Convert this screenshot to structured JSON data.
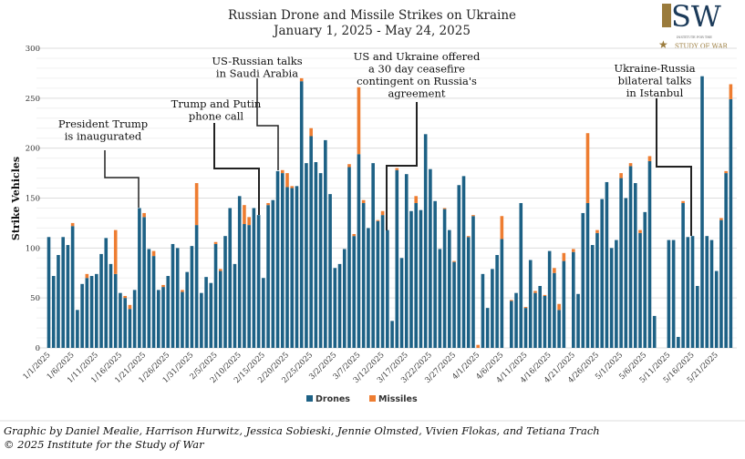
{
  "colors": {
    "drones": "#1d6185",
    "missiles": "#ee7d31",
    "grid": "#e8e8e8",
    "logo_gold": "#9a7b3c",
    "logo_navy": "#1c3b5a"
  },
  "logo": {
    "text": "ISW",
    "subtext_top": "INSTITUTE FOR THE",
    "subtext_bottom": "STUDY OF WAR",
    "icon": "star-icon"
  },
  "footer": {
    "credit": "Graphic by Daniel Mealie, Harrison Hurwitz, Jessica Sobieski, Jennie Olmsted, Vivien Flokas, and Tetiana Trach",
    "copyright": "© 2025 Institute for the Study of War"
  },
  "chart_data": {
    "type": "bar",
    "stacked": true,
    "title": "Russian Drone and Missile Strikes on Ukraine",
    "subtitle": "January 1, 2025 - May 24, 2025",
    "ylabel": "Strike Vehicles",
    "xlabel": "",
    "ylim": [
      0,
      300
    ],
    "yticks": [
      0,
      50,
      100,
      150,
      200,
      250,
      300
    ],
    "grid": true,
    "legend": "bottom",
    "xtick_labels": [
      "1/1/2025",
      "1/6/2025",
      "1/11/2025",
      "1/16/2025",
      "1/21/2025",
      "1/26/2025",
      "1/31/2025",
      "2/5/2025",
      "2/10/2025",
      "2/15/2025",
      "2/20/2025",
      "2/25/2025",
      "3/2/2025",
      "3/7/2025",
      "3/12/2025",
      "3/17/2025",
      "3/22/2025",
      "3/27/2025",
      "4/1/2025",
      "4/6/2025",
      "4/11/2025",
      "4/16/2025",
      "4/21/2025",
      "4/26/2025",
      "5/1/2025",
      "5/6/2025",
      "5/11/2025",
      "5/16/2025",
      "5/21/2025"
    ],
    "start_date": "1/1/2025",
    "end_date": "5/24/2025",
    "series": [
      {
        "name": "Drones",
        "values": [
          111,
          72,
          93,
          111,
          103,
          122,
          38,
          64,
          70,
          72,
          74,
          94,
          110,
          84,
          74,
          55,
          50,
          39,
          58,
          140,
          131,
          99,
          92,
          58,
          61,
          72,
          104,
          100,
          56,
          76,
          102,
          123,
          55,
          71,
          65,
          104,
          77,
          112,
          140,
          84,
          152,
          124,
          123,
          140,
          133,
          70,
          143,
          148,
          177,
          175,
          161,
          160,
          162,
          267,
          185,
          212,
          186,
          175,
          208,
          154,
          80,
          84,
          99,
          181,
          112,
          194,
          145,
          120,
          185,
          127,
          133,
          118,
          27,
          178,
          90,
          174,
          137,
          145,
          138,
          214,
          179,
          147,
          99,
          139,
          118,
          86,
          163,
          172,
          111,
          132,
          0,
          74,
          40,
          79,
          93,
          109,
          0,
          47,
          55,
          145,
          40,
          88,
          55,
          62,
          52,
          97,
          75,
          38,
          87,
          0,
          96,
          54,
          135,
          145,
          103,
          115,
          149,
          166,
          100,
          108,
          170,
          150,
          182,
          165,
          115,
          136,
          187,
          32,
          0,
          0,
          108,
          108,
          11,
          145,
          111,
          112,
          62,
          272,
          112,
          108,
          77,
          128,
          175,
          249
        ]
      },
      {
        "name": "Missiles",
        "values": [
          0,
          0,
          0,
          0,
          0,
          3,
          0,
          0,
          4,
          0,
          0,
          0,
          0,
          0,
          44,
          0,
          2,
          4,
          0,
          0,
          4,
          0,
          5,
          0,
          2,
          0,
          0,
          0,
          2,
          0,
          0,
          42,
          0,
          0,
          0,
          2,
          2,
          0,
          0,
          0,
          0,
          19,
          8,
          0,
          0,
          0,
          2,
          0,
          0,
          3,
          14,
          2,
          0,
          3,
          0,
          8,
          0,
          0,
          0,
          0,
          0,
          0,
          0,
          3,
          2,
          67,
          3,
          0,
          0,
          1,
          4,
          0,
          0,
          2,
          0,
          0,
          0,
          7,
          0,
          0,
          0,
          0,
          0,
          1,
          0,
          1,
          0,
          0,
          1,
          1,
          3,
          0,
          0,
          0,
          0,
          23,
          0,
          1,
          0,
          0,
          1,
          0,
          2,
          0,
          1,
          0,
          5,
          6,
          8,
          0,
          3,
          0,
          0,
          70,
          0,
          3,
          0,
          0,
          0,
          0,
          5,
          0,
          3,
          0,
          3,
          0,
          5,
          0,
          0,
          0,
          0,
          0,
          0,
          2,
          0,
          0,
          0,
          0,
          0,
          0,
          0,
          2,
          2,
          15
        ]
      }
    ],
    "annotations": [
      {
        "lines": [
          "President Trump",
          "is inaugurated"
        ],
        "date": "1/20/2025"
      },
      {
        "lines": [
          "Trump and Putin",
          "phone call"
        ],
        "date": "2/12/2025"
      },
      {
        "lines": [
          "US-Russian talks",
          "in Saudi Arabia"
        ],
        "date": "2/18/2025"
      },
      {
        "lines": [
          "US and Ukraine offered",
          "a 30 day ceasefire",
          "contingent on Russia's",
          "agreement"
        ],
        "date": "3/11/2025"
      },
      {
        "lines": [
          "Ukraine-Russia",
          "bilateral talks",
          "in Istanbul"
        ],
        "date": "5/16/2025"
      }
    ]
  }
}
